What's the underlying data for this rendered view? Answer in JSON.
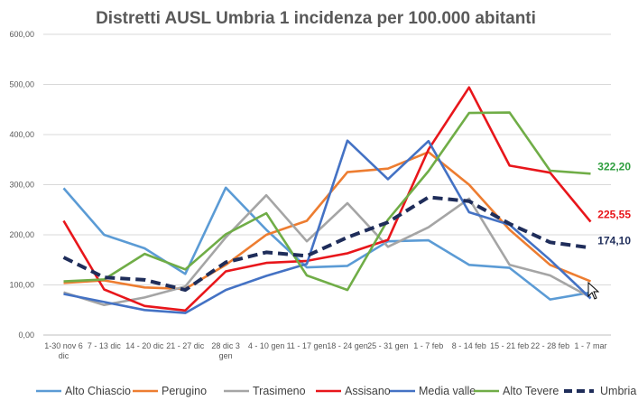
{
  "chart_data": {
    "type": "line",
    "title": "Distretti AUSL Umbria 1 incidenza per 100.000 abitanti",
    "xlabel": "",
    "ylabel": "",
    "ylim": [
      0,
      600
    ],
    "yticks": [
      "0,00",
      "100,00",
      "200,00",
      "300,00",
      "400,00",
      "500,00",
      "600,00"
    ],
    "grid": true,
    "legend_position": "bottom",
    "categories": [
      [
        "1-30 nov 6",
        "dic"
      ],
      [
        "7 - 13 dic"
      ],
      [
        "14 - 20 dic"
      ],
      [
        "21 - 27 dic"
      ],
      [
        "28 dic 3",
        "gen"
      ],
      [
        "4 - 10 gen"
      ],
      [
        "11 - 17 gen"
      ],
      [
        "18 - 24 gen"
      ],
      [
        "25 - 31 gen"
      ],
      [
        "1 - 7 feb"
      ],
      [
        "8 - 14 feb"
      ],
      [
        "15 - 21 feb"
      ],
      [
        "22 - 28 feb"
      ],
      [
        "1 - 7 mar"
      ]
    ],
    "series": [
      {
        "name": "Alto Chiascio",
        "color": "#5b9bd5",
        "dash": false,
        "values": [
          293,
          200,
          173,
          122,
          294,
          210,
          135,
          138,
          187,
          189,
          140,
          134,
          71,
          85
        ]
      },
      {
        "name": "Perugino",
        "color": "#ed7d31",
        "dash": false,
        "values": [
          104,
          109,
          95,
          92,
          140,
          200,
          228,
          325,
          332,
          365,
          300,
          210,
          140,
          107
        ]
      },
      {
        "name": "Trasimeno",
        "color": "#a5a5a5",
        "dash": false,
        "values": [
          85,
          60,
          75,
          97,
          195,
          279,
          187,
          263,
          176,
          215,
          272,
          140,
          119,
          75
        ]
      },
      {
        "name": "Assisano",
        "color": "#e8161b",
        "dash": false,
        "values": [
          228,
          91,
          58,
          49,
          127,
          144,
          148,
          163,
          190,
          370,
          494,
          338,
          324,
          226
        ]
      },
      {
        "name": "Media valle",
        "color": "#4472c4",
        "dash": false,
        "values": [
          82,
          66,
          50,
          44,
          90,
          118,
          142,
          388,
          311,
          387,
          245,
          220,
          150,
          73
        ]
      },
      {
        "name": "Alto Tevere",
        "color": "#70ad47",
        "dash": false,
        "values": [
          107,
          111,
          162,
          131,
          201,
          243,
          119,
          90,
          230,
          327,
          443,
          444,
          328,
          322
        ]
      },
      {
        "name": "Umbria",
        "color": "#1f2d5a",
        "dash": true,
        "values": [
          155,
          115,
          110,
          90,
          145,
          165,
          158,
          195,
          225,
          275,
          267,
          222,
          185,
          174
        ]
      }
    ],
    "end_labels": [
      {
        "series": "Alto Tevere",
        "text": "322,20",
        "color": "#2e9e3e"
      },
      {
        "series": "Assisano",
        "text": "225,55",
        "color": "#e8161b"
      },
      {
        "series": "Umbria",
        "text": "174,10",
        "color": "#1f2d5a"
      }
    ]
  }
}
